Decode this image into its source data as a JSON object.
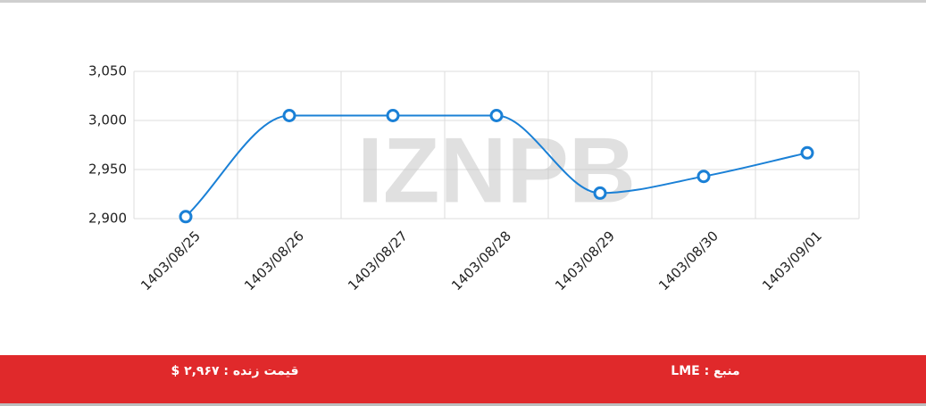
{
  "chart_data": {
    "type": "line",
    "watermark": "IZNPB",
    "categories": [
      "1403/08/25",
      "1403/08/26",
      "1403/08/27",
      "1403/08/28",
      "1403/08/29",
      "1403/08/30",
      "1403/09/01"
    ],
    "series": [
      {
        "name": "LME",
        "color": "#1a80d6",
        "values": [
          2902,
          3005,
          3005,
          3005,
          2926,
          2943,
          2967
        ]
      }
    ],
    "ylim": [
      2900,
      3050
    ],
    "yticks": [
      {
        "value": 2900,
        "label": "2,900"
      },
      {
        "value": 2950,
        "label": "2,950"
      },
      {
        "value": 3000,
        "label": "3,000"
      },
      {
        "value": 3050,
        "label": "3,050"
      }
    ],
    "grid": true
  },
  "footer": {
    "source": "منبع : LME",
    "live_price": "قیمت زنده : ۲,۹۶۷ $",
    "color": "#e0292b"
  }
}
